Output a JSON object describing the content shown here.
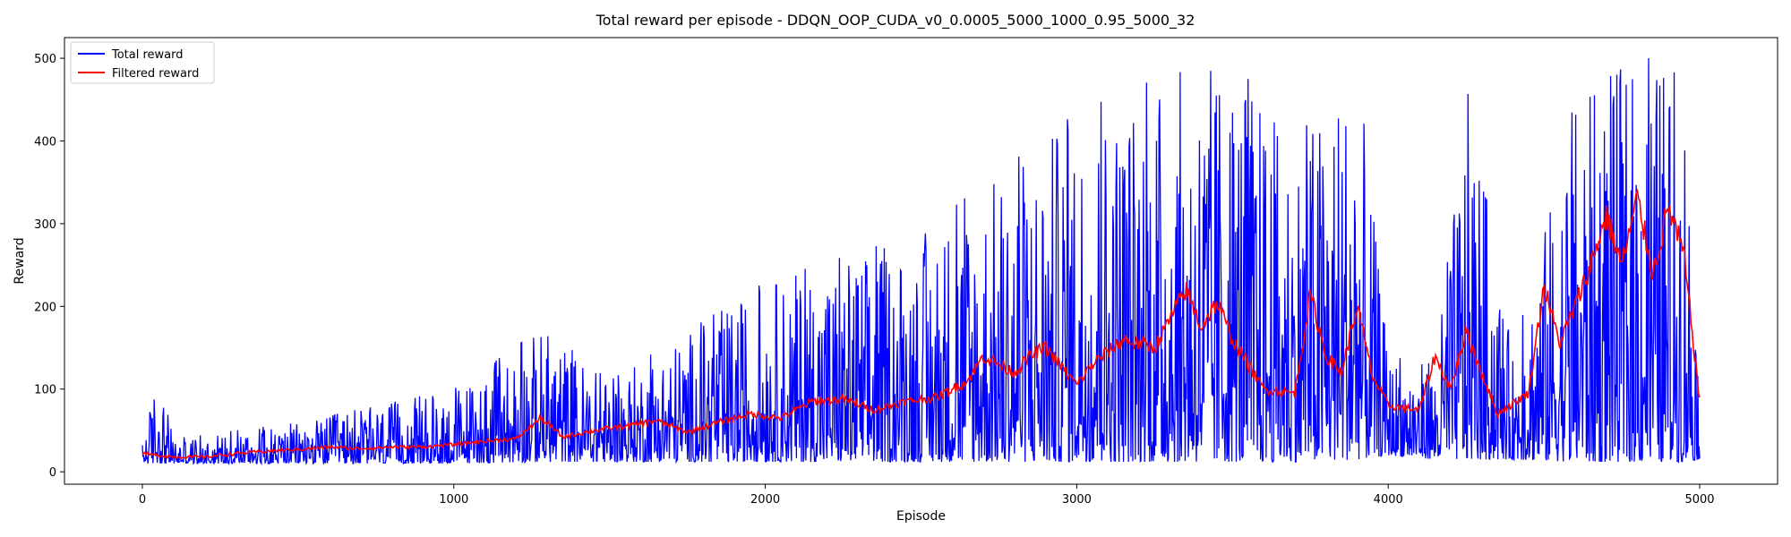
{
  "chart_data": {
    "type": "line",
    "title": "Total reward per episode - DDQN_OOP_CUDA_v0_0.0005_5000_1000_0.95_5000_32",
    "xlabel": "Episode",
    "ylabel": "Reward",
    "xlim": [
      -250,
      5250
    ],
    "ylim": [
      -15,
      525
    ],
    "xticks": [
      0,
      1000,
      2000,
      3000,
      4000,
      5000
    ],
    "yticks": [
      0,
      100,
      200,
      300,
      400,
      500
    ],
    "grid": false,
    "legend_position": "top-left",
    "series": [
      {
        "name": "Total reward",
        "color": "#0000ff",
        "style": "noisy",
        "envelope": [
          {
            "x": 0,
            "low": 10,
            "high": 35
          },
          {
            "x": 50,
            "low": 10,
            "high": 125
          },
          {
            "x": 100,
            "low": 10,
            "high": 40
          },
          {
            "x": 500,
            "low": 10,
            "high": 60
          },
          {
            "x": 1000,
            "low": 10,
            "high": 100
          },
          {
            "x": 1290,
            "low": 12,
            "high": 175
          },
          {
            "x": 1500,
            "low": 12,
            "high": 110
          },
          {
            "x": 2000,
            "low": 12,
            "high": 230
          },
          {
            "x": 2500,
            "low": 12,
            "high": 290
          },
          {
            "x": 3000,
            "low": 12,
            "high": 435
          },
          {
            "x": 3410,
            "low": 12,
            "high": 500
          },
          {
            "x": 3500,
            "low": 12,
            "high": 500
          },
          {
            "x": 3700,
            "low": 12,
            "high": 400
          },
          {
            "x": 3900,
            "low": 15,
            "high": 500
          },
          {
            "x": 4000,
            "low": 20,
            "high": 140
          },
          {
            "x": 4150,
            "low": 15,
            "high": 130
          },
          {
            "x": 4260,
            "low": 15,
            "high": 470
          },
          {
            "x": 4400,
            "low": 15,
            "high": 140
          },
          {
            "x": 4600,
            "low": 12,
            "high": 450
          },
          {
            "x": 4800,
            "low": 12,
            "high": 500
          },
          {
            "x": 4950,
            "low": 12,
            "high": 500
          },
          {
            "x": 5000,
            "low": 15,
            "high": 120
          }
        ]
      },
      {
        "name": "Filtered reward",
        "color": "#ff0000",
        "style": "smooth",
        "points": [
          {
            "x": 0,
            "y": 22
          },
          {
            "x": 100,
            "y": 18
          },
          {
            "x": 200,
            "y": 18
          },
          {
            "x": 300,
            "y": 22
          },
          {
            "x": 400,
            "y": 25
          },
          {
            "x": 500,
            "y": 27
          },
          {
            "x": 600,
            "y": 30
          },
          {
            "x": 700,
            "y": 28
          },
          {
            "x": 800,
            "y": 30
          },
          {
            "x": 900,
            "y": 30
          },
          {
            "x": 1000,
            "y": 33
          },
          {
            "x": 1100,
            "y": 37
          },
          {
            "x": 1200,
            "y": 40
          },
          {
            "x": 1280,
            "y": 65
          },
          {
            "x": 1350,
            "y": 42
          },
          {
            "x": 1450,
            "y": 50
          },
          {
            "x": 1550,
            "y": 55
          },
          {
            "x": 1650,
            "y": 62
          },
          {
            "x": 1750,
            "y": 48
          },
          {
            "x": 1850,
            "y": 60
          },
          {
            "x": 1950,
            "y": 70
          },
          {
            "x": 2050,
            "y": 65
          },
          {
            "x": 2150,
            "y": 85
          },
          {
            "x": 2250,
            "y": 88
          },
          {
            "x": 2350,
            "y": 75
          },
          {
            "x": 2450,
            "y": 85
          },
          {
            "x": 2550,
            "y": 90
          },
          {
            "x": 2650,
            "y": 110
          },
          {
            "x": 2700,
            "y": 140
          },
          {
            "x": 2800,
            "y": 120
          },
          {
            "x": 2850,
            "y": 140
          },
          {
            "x": 2900,
            "y": 150
          },
          {
            "x": 3000,
            "y": 105
          },
          {
            "x": 3050,
            "y": 130
          },
          {
            "x": 3150,
            "y": 160
          },
          {
            "x": 3250,
            "y": 150
          },
          {
            "x": 3350,
            "y": 220
          },
          {
            "x": 3400,
            "y": 175
          },
          {
            "x": 3450,
            "y": 205
          },
          {
            "x": 3500,
            "y": 160
          },
          {
            "x": 3600,
            "y": 100
          },
          {
            "x": 3700,
            "y": 95
          },
          {
            "x": 3750,
            "y": 215
          },
          {
            "x": 3800,
            "y": 140
          },
          {
            "x": 3850,
            "y": 120
          },
          {
            "x": 3900,
            "y": 200
          },
          {
            "x": 3950,
            "y": 115
          },
          {
            "x": 4000,
            "y": 80
          },
          {
            "x": 4100,
            "y": 75
          },
          {
            "x": 4150,
            "y": 140
          },
          {
            "x": 4200,
            "y": 100
          },
          {
            "x": 4250,
            "y": 170
          },
          {
            "x": 4300,
            "y": 120
          },
          {
            "x": 4350,
            "y": 70
          },
          {
            "x": 4450,
            "y": 95
          },
          {
            "x": 4500,
            "y": 225
          },
          {
            "x": 4550,
            "y": 155
          },
          {
            "x": 4600,
            "y": 200
          },
          {
            "x": 4650,
            "y": 250
          },
          {
            "x": 4700,
            "y": 310
          },
          {
            "x": 4750,
            "y": 250
          },
          {
            "x": 4800,
            "y": 330
          },
          {
            "x": 4850,
            "y": 240
          },
          {
            "x": 4900,
            "y": 320
          },
          {
            "x": 4950,
            "y": 260
          },
          {
            "x": 5000,
            "y": 85
          }
        ]
      }
    ]
  }
}
